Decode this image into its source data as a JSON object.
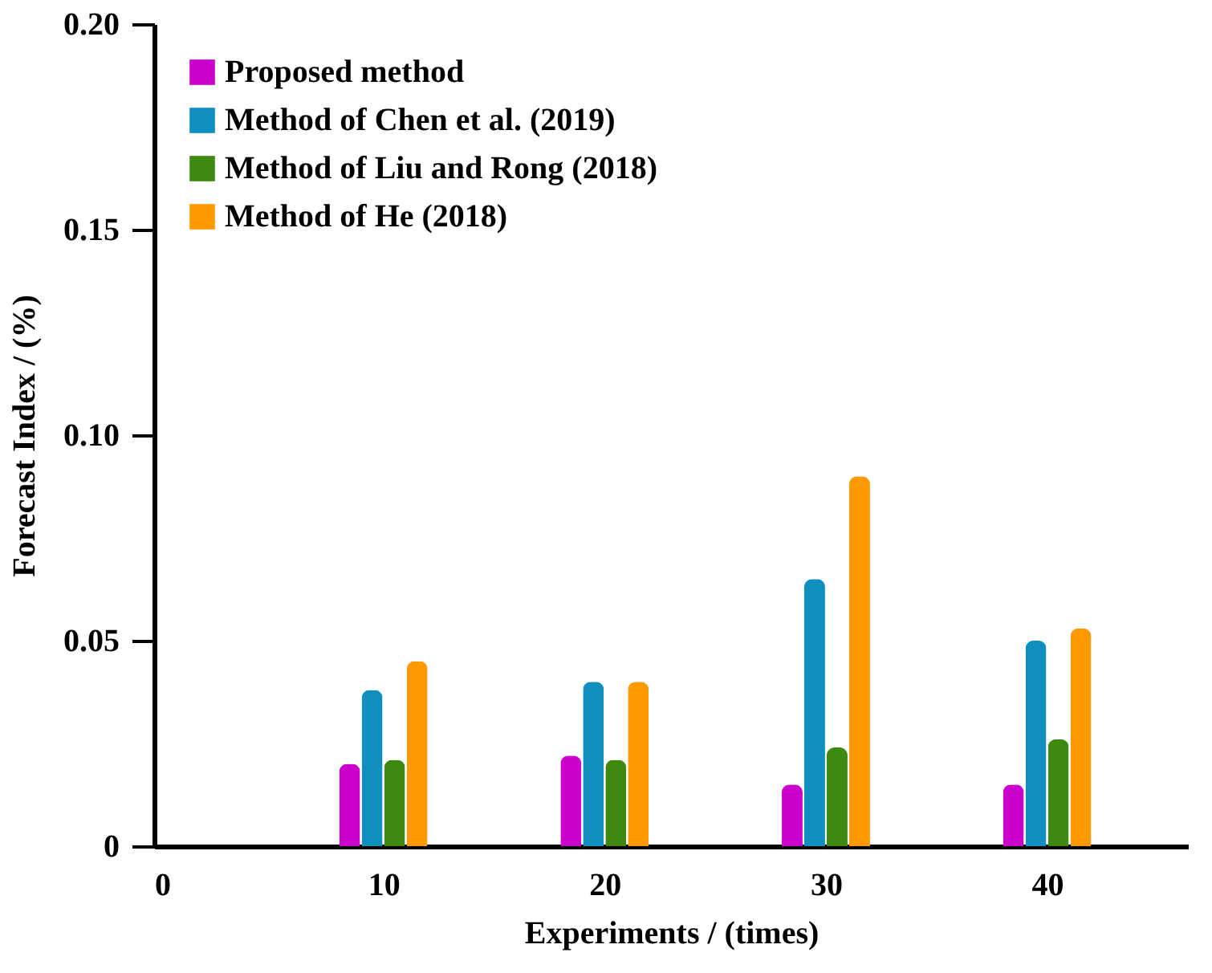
{
  "chart_data": {
    "type": "bar",
    "xlabel": "Experiments / (times)",
    "ylabel": "Forecast Index / (%)",
    "x": [
      10,
      20,
      30,
      40
    ],
    "xlim": [
      0,
      46
    ],
    "xticks": [
      0,
      10,
      20,
      30,
      40
    ],
    "ylim": [
      0,
      0.2
    ],
    "yticks": [
      0,
      0.05,
      {
        "value": 0.1,
        "label": "0.10"
      },
      0.15,
      {
        "value": 0.2,
        "label": "0.20"
      }
    ],
    "series": [
      {
        "name": "Proposed method",
        "color": "#cc00cc",
        "values": [
          0.02,
          0.022,
          0.015,
          0.015
        ]
      },
      {
        "name": "Method of Chen et al. (2019)",
        "color": "#0e8fbf",
        "values": [
          0.038,
          0.04,
          0.065,
          0.05
        ]
      },
      {
        "name": "Method of Liu and Rong (2018)",
        "color": "#3e8a10",
        "values": [
          0.021,
          0.021,
          0.024,
          0.026
        ]
      },
      {
        "name": "Method of He (2018)",
        "color": "#ff9900",
        "values": [
          0.045,
          0.04,
          0.09,
          0.053
        ]
      }
    ],
    "grid": false,
    "legend": "top left"
  }
}
